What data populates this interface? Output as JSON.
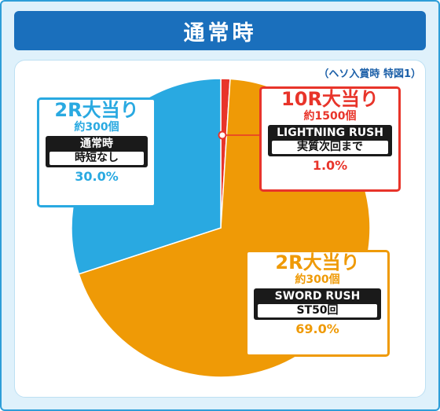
{
  "title": "通常時",
  "note": "（ヘソ入賞時 特図1）",
  "chart_data": {
    "type": "pie",
    "slices": [
      {
        "label": "10R大当り",
        "count": "約1500個",
        "mode": "LIGHTNING RUSH",
        "detail": "実質次回まで",
        "value": 1.0,
        "percent_label": "1.0%",
        "color": "#e8342a"
      },
      {
        "label": "2R大当り",
        "count": "約300個",
        "mode": "SWORD RUSH",
        "detail": "ST50回",
        "value": 69.0,
        "percent_label": "69.0%",
        "color": "#ef9a06"
      },
      {
        "label": "2R大当り",
        "count": "約300個",
        "mode": "通常時",
        "detail": "時短なし",
        "value": 30.0,
        "percent_label": "30.0%",
        "color": "#29a9e1"
      }
    ]
  }
}
